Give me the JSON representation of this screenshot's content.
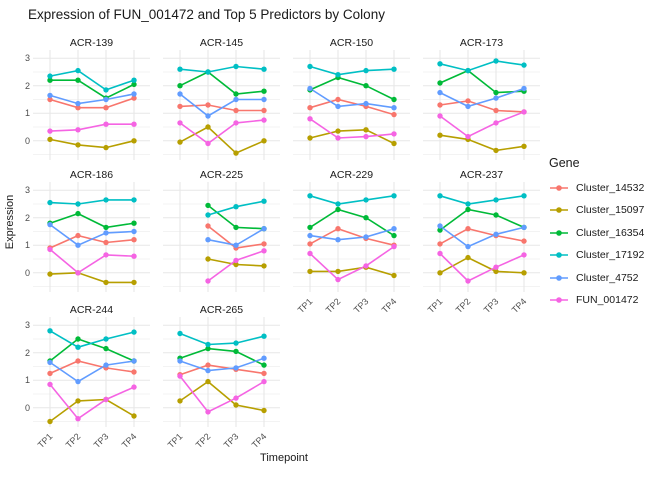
{
  "title": "Expression of FUN_001472 and Top 5 Predictors by Colony",
  "chart_data": {
    "type": "line",
    "title": "Expression of FUN_001472 and Top 5 Predictors by Colony",
    "xlabel": "Timepoint",
    "ylabel": "Expression",
    "legend_title": "Gene",
    "legend_position": "right",
    "grid": true,
    "x_categories": [
      "TP1",
      "TP2",
      "TP3",
      "TP4"
    ],
    "yticks": [
      3,
      2,
      1,
      0
    ],
    "ylim": [
      -0.7,
      3.3
    ],
    "genes": [
      {
        "name": "Cluster_14532",
        "color": "#F8766D"
      },
      {
        "name": "Cluster_15097",
        "color": "#B79F00"
      },
      {
        "name": "Cluster_16354",
        "color": "#00BA38"
      },
      {
        "name": "Cluster_17192",
        "color": "#00BFC4"
      },
      {
        "name": "Cluster_4752",
        "color": "#619CFF"
      },
      {
        "name": "FUN_001472",
        "color": "#F564E3"
      }
    ],
    "facets": [
      {
        "title": "ACR-139",
        "series": [
          [
            1.5,
            1.2,
            1.2,
            1.55
          ],
          [
            0.05,
            -0.15,
            -0.25,
            0.0
          ],
          [
            2.2,
            2.2,
            1.55,
            2.05
          ],
          [
            2.35,
            2.55,
            1.85,
            2.2
          ],
          [
            1.65,
            1.35,
            1.5,
            1.7
          ],
          [
            0.35,
            0.4,
            0.6,
            0.6
          ]
        ]
      },
      {
        "title": "ACR-145",
        "series": [
          [
            1.25,
            1.3,
            1.1,
            1.1
          ],
          [
            -0.05,
            0.5,
            -0.45,
            0.0
          ],
          [
            2.0,
            2.5,
            1.7,
            1.8
          ],
          [
            2.6,
            2.5,
            2.7,
            2.6
          ],
          [
            1.7,
            0.9,
            1.5,
            1.5
          ],
          [
            0.65,
            -0.1,
            0.65,
            0.75
          ]
        ]
      },
      {
        "title": "ACR-150",
        "series": [
          [
            1.2,
            1.5,
            1.25,
            0.95
          ],
          [
            0.1,
            0.35,
            0.4,
            -0.1
          ],
          [
            1.85,
            2.3,
            2.0,
            1.5
          ],
          [
            2.7,
            2.4,
            2.55,
            2.6
          ],
          [
            1.9,
            1.25,
            1.35,
            1.2
          ],
          [
            0.8,
            0.1,
            0.15,
            0.25
          ]
        ]
      },
      {
        "title": "ACR-173",
        "series": [
          [
            1.3,
            1.45,
            1.1,
            1.05
          ],
          [
            0.2,
            0.05,
            -0.35,
            -0.2
          ],
          [
            2.1,
            2.55,
            1.75,
            1.8
          ],
          [
            2.8,
            2.55,
            2.9,
            2.75
          ],
          [
            1.75,
            1.25,
            1.55,
            1.9
          ],
          [
            0.9,
            0.15,
            0.65,
            1.05
          ]
        ]
      },
      {
        "title": "ACR-186",
        "series": [
          [
            0.9,
            1.35,
            1.1,
            1.2
          ],
          [
            -0.05,
            0.0,
            -0.35,
            -0.35
          ],
          [
            1.8,
            2.15,
            1.65,
            1.8
          ],
          [
            2.55,
            2.5,
            2.65,
            2.65
          ],
          [
            1.75,
            1.0,
            1.45,
            1.5
          ],
          [
            0.85,
            0.0,
            0.65,
            0.6
          ]
        ]
      },
      {
        "title": "ACR-225",
        "series": [
          [
            null,
            1.7,
            0.9,
            1.05
          ],
          [
            null,
            0.5,
            0.3,
            0.25
          ],
          [
            null,
            2.45,
            1.65,
            1.6
          ],
          [
            null,
            2.1,
            2.4,
            2.6
          ],
          [
            null,
            1.2,
            1.0,
            1.6
          ],
          [
            null,
            -0.3,
            0.45,
            0.8
          ]
        ]
      },
      {
        "title": "ACR-229",
        "series": [
          [
            1.05,
            1.6,
            1.25,
            1.0
          ],
          [
            0.05,
            0.05,
            0.2,
            -0.1
          ],
          [
            1.65,
            2.3,
            2.0,
            1.35
          ],
          [
            2.8,
            2.5,
            2.65,
            2.8
          ],
          [
            1.35,
            1.2,
            1.3,
            1.6
          ],
          [
            0.7,
            -0.25,
            0.25,
            0.95
          ]
        ]
      },
      {
        "title": "ACR-237",
        "series": [
          [
            1.05,
            1.6,
            1.35,
            1.15
          ],
          [
            0.0,
            0.55,
            0.05,
            0.0
          ],
          [
            1.55,
            2.3,
            2.1,
            1.65
          ],
          [
            2.8,
            2.5,
            2.65,
            2.8
          ],
          [
            1.7,
            0.95,
            1.4,
            1.65
          ],
          [
            0.7,
            -0.3,
            0.2,
            0.65
          ]
        ]
      },
      {
        "title": "ACR-244",
        "series": [
          [
            1.25,
            1.7,
            1.45,
            1.3
          ],
          [
            -0.5,
            0.25,
            0.3,
            -0.3
          ],
          [
            1.7,
            2.5,
            2.15,
            1.7
          ],
          [
            2.8,
            2.2,
            2.5,
            2.75
          ],
          [
            1.65,
            0.95,
            1.55,
            1.7
          ],
          [
            0.85,
            -0.4,
            0.3,
            0.75
          ]
        ]
      },
      {
        "title": "ACR-265",
        "series": [
          [
            1.2,
            1.55,
            1.4,
            1.25
          ],
          [
            0.25,
            0.95,
            0.1,
            -0.1
          ],
          [
            1.8,
            2.15,
            2.05,
            1.55
          ],
          [
            2.7,
            2.3,
            2.35,
            2.6
          ],
          [
            1.7,
            1.35,
            1.45,
            1.8
          ],
          [
            1.15,
            -0.15,
            0.35,
            0.95
          ]
        ]
      }
    ],
    "style": {
      "grid_major_color": "#e7e7e7",
      "grid_minor_color": "#f3f3f3",
      "tick_label_color": "#4d4d4d"
    }
  }
}
